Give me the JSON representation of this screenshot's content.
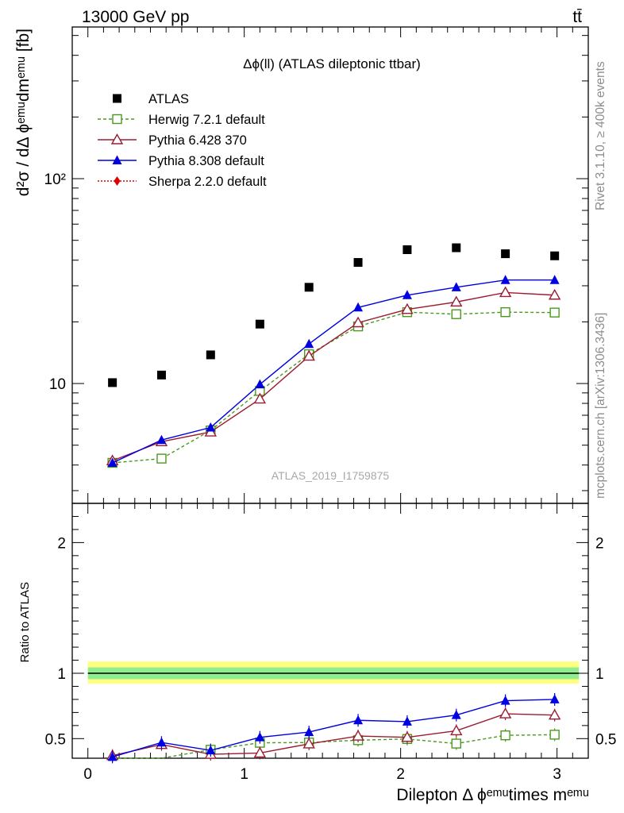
{
  "header": {
    "energy_label": "13000 GeV pp",
    "process_label": "tt̄"
  },
  "side_labels": {
    "rivet": "Rivet 3.1.10, ≥ 400k events",
    "mcplots": "mcplots.cern.ch [arXiv:1306.3436]"
  },
  "watermark": "ATLAS_2019_I1759875",
  "chart_data": [
    {
      "type": "scatter",
      "title": "Δϕ(ll) (ATLAS dileptonic ttbar)",
      "ylabel": "d²σ / dΔ ϕᵉᵐᵘdmᵉᵐᵘ [fb]",
      "yscale": "log",
      "ylim": [
        2.6,
        550
      ],
      "xlim": [
        -0.1,
        3.2
      ],
      "ytick_labels": [
        "10",
        "10²"
      ],
      "grid": false,
      "legend_position": "top-left",
      "x": [
        0.157,
        0.471,
        0.785,
        1.1,
        1.414,
        1.728,
        2.042,
        2.356,
        2.67,
        2.985
      ],
      "series": [
        {
          "name": "ATLAS",
          "color": "#000000",
          "marker": "square-filled",
          "values": [
            10.1,
            11.0,
            13.8,
            19.5,
            29.5,
            39.0,
            45.0,
            46.0,
            43.0,
            42.0
          ]
        },
        {
          "name": "Herwig 7.2.1 default",
          "color": "#4a9a1e",
          "marker": "square-open",
          "dashed": true,
          "values": [
            4.1,
            4.3,
            5.9,
            9.2,
            13.9,
            19.0,
            22.3,
            21.8,
            22.3,
            22.2
          ]
        },
        {
          "name": "Pythia 6.428 370",
          "color": "#9b1c31",
          "marker": "triangle-open",
          "values": [
            4.2,
            5.2,
            5.8,
            8.4,
            13.6,
            19.8,
            23.0,
            25.0,
            27.8,
            27.0
          ]
        },
        {
          "name": "Pythia 8.308 default",
          "color": "#0000e0",
          "marker": "triangle-filled",
          "values": [
            4.1,
            5.3,
            6.1,
            9.9,
            15.6,
            23.5,
            27.0,
            29.5,
            32.0,
            32.0
          ]
        },
        {
          "name": "Sherpa 2.2.0 default",
          "color": "#e00000",
          "marker": "diamond-filled",
          "values": []
        }
      ]
    },
    {
      "type": "line",
      "ylabel": "Ratio to ATLAS",
      "xlabel": "Dilepton Δ ϕᵉᵐᵘtimes mᵉᵐᵘ",
      "ylim": [
        0.35,
        2.3
      ],
      "xlim": [
        -0.1,
        3.2
      ],
      "xtick_labels": [
        "0",
        "1",
        "2",
        "3"
      ],
      "ytick_labels": [
        "0.5",
        "1",
        "2"
      ],
      "reference_band": {
        "inner": [
          0.955,
          1.045
        ],
        "outer": [
          0.92,
          1.09
        ],
        "inner_color": "#90ee90",
        "outer_color": "#ffff80"
      },
      "x": [
        0.157,
        0.471,
        0.785,
        1.1,
        1.414,
        1.728,
        2.042,
        2.356,
        2.67,
        2.985
      ],
      "series": [
        {
          "name": "Herwig 7.2.1 default",
          "color": "#4a9a1e",
          "marker": "square-open",
          "dashed": true,
          "values": [
            0.35,
            0.335,
            0.415,
            0.468,
            0.47,
            0.488,
            0.497,
            0.462,
            0.525,
            0.53
          ]
        },
        {
          "name": "Pythia 6.428 370",
          "color": "#9b1c31",
          "marker": "triangle-open",
          "values": [
            0.37,
            0.455,
            0.38,
            0.39,
            0.46,
            0.52,
            0.51,
            0.56,
            0.69,
            0.68
          ]
        },
        {
          "name": "Pythia 8.308 default",
          "color": "#0000e0",
          "marker": "triangle-filled",
          "values": [
            0.36,
            0.47,
            0.41,
            0.51,
            0.55,
            0.64,
            0.63,
            0.68,
            0.79,
            0.8
          ]
        }
      ]
    }
  ]
}
